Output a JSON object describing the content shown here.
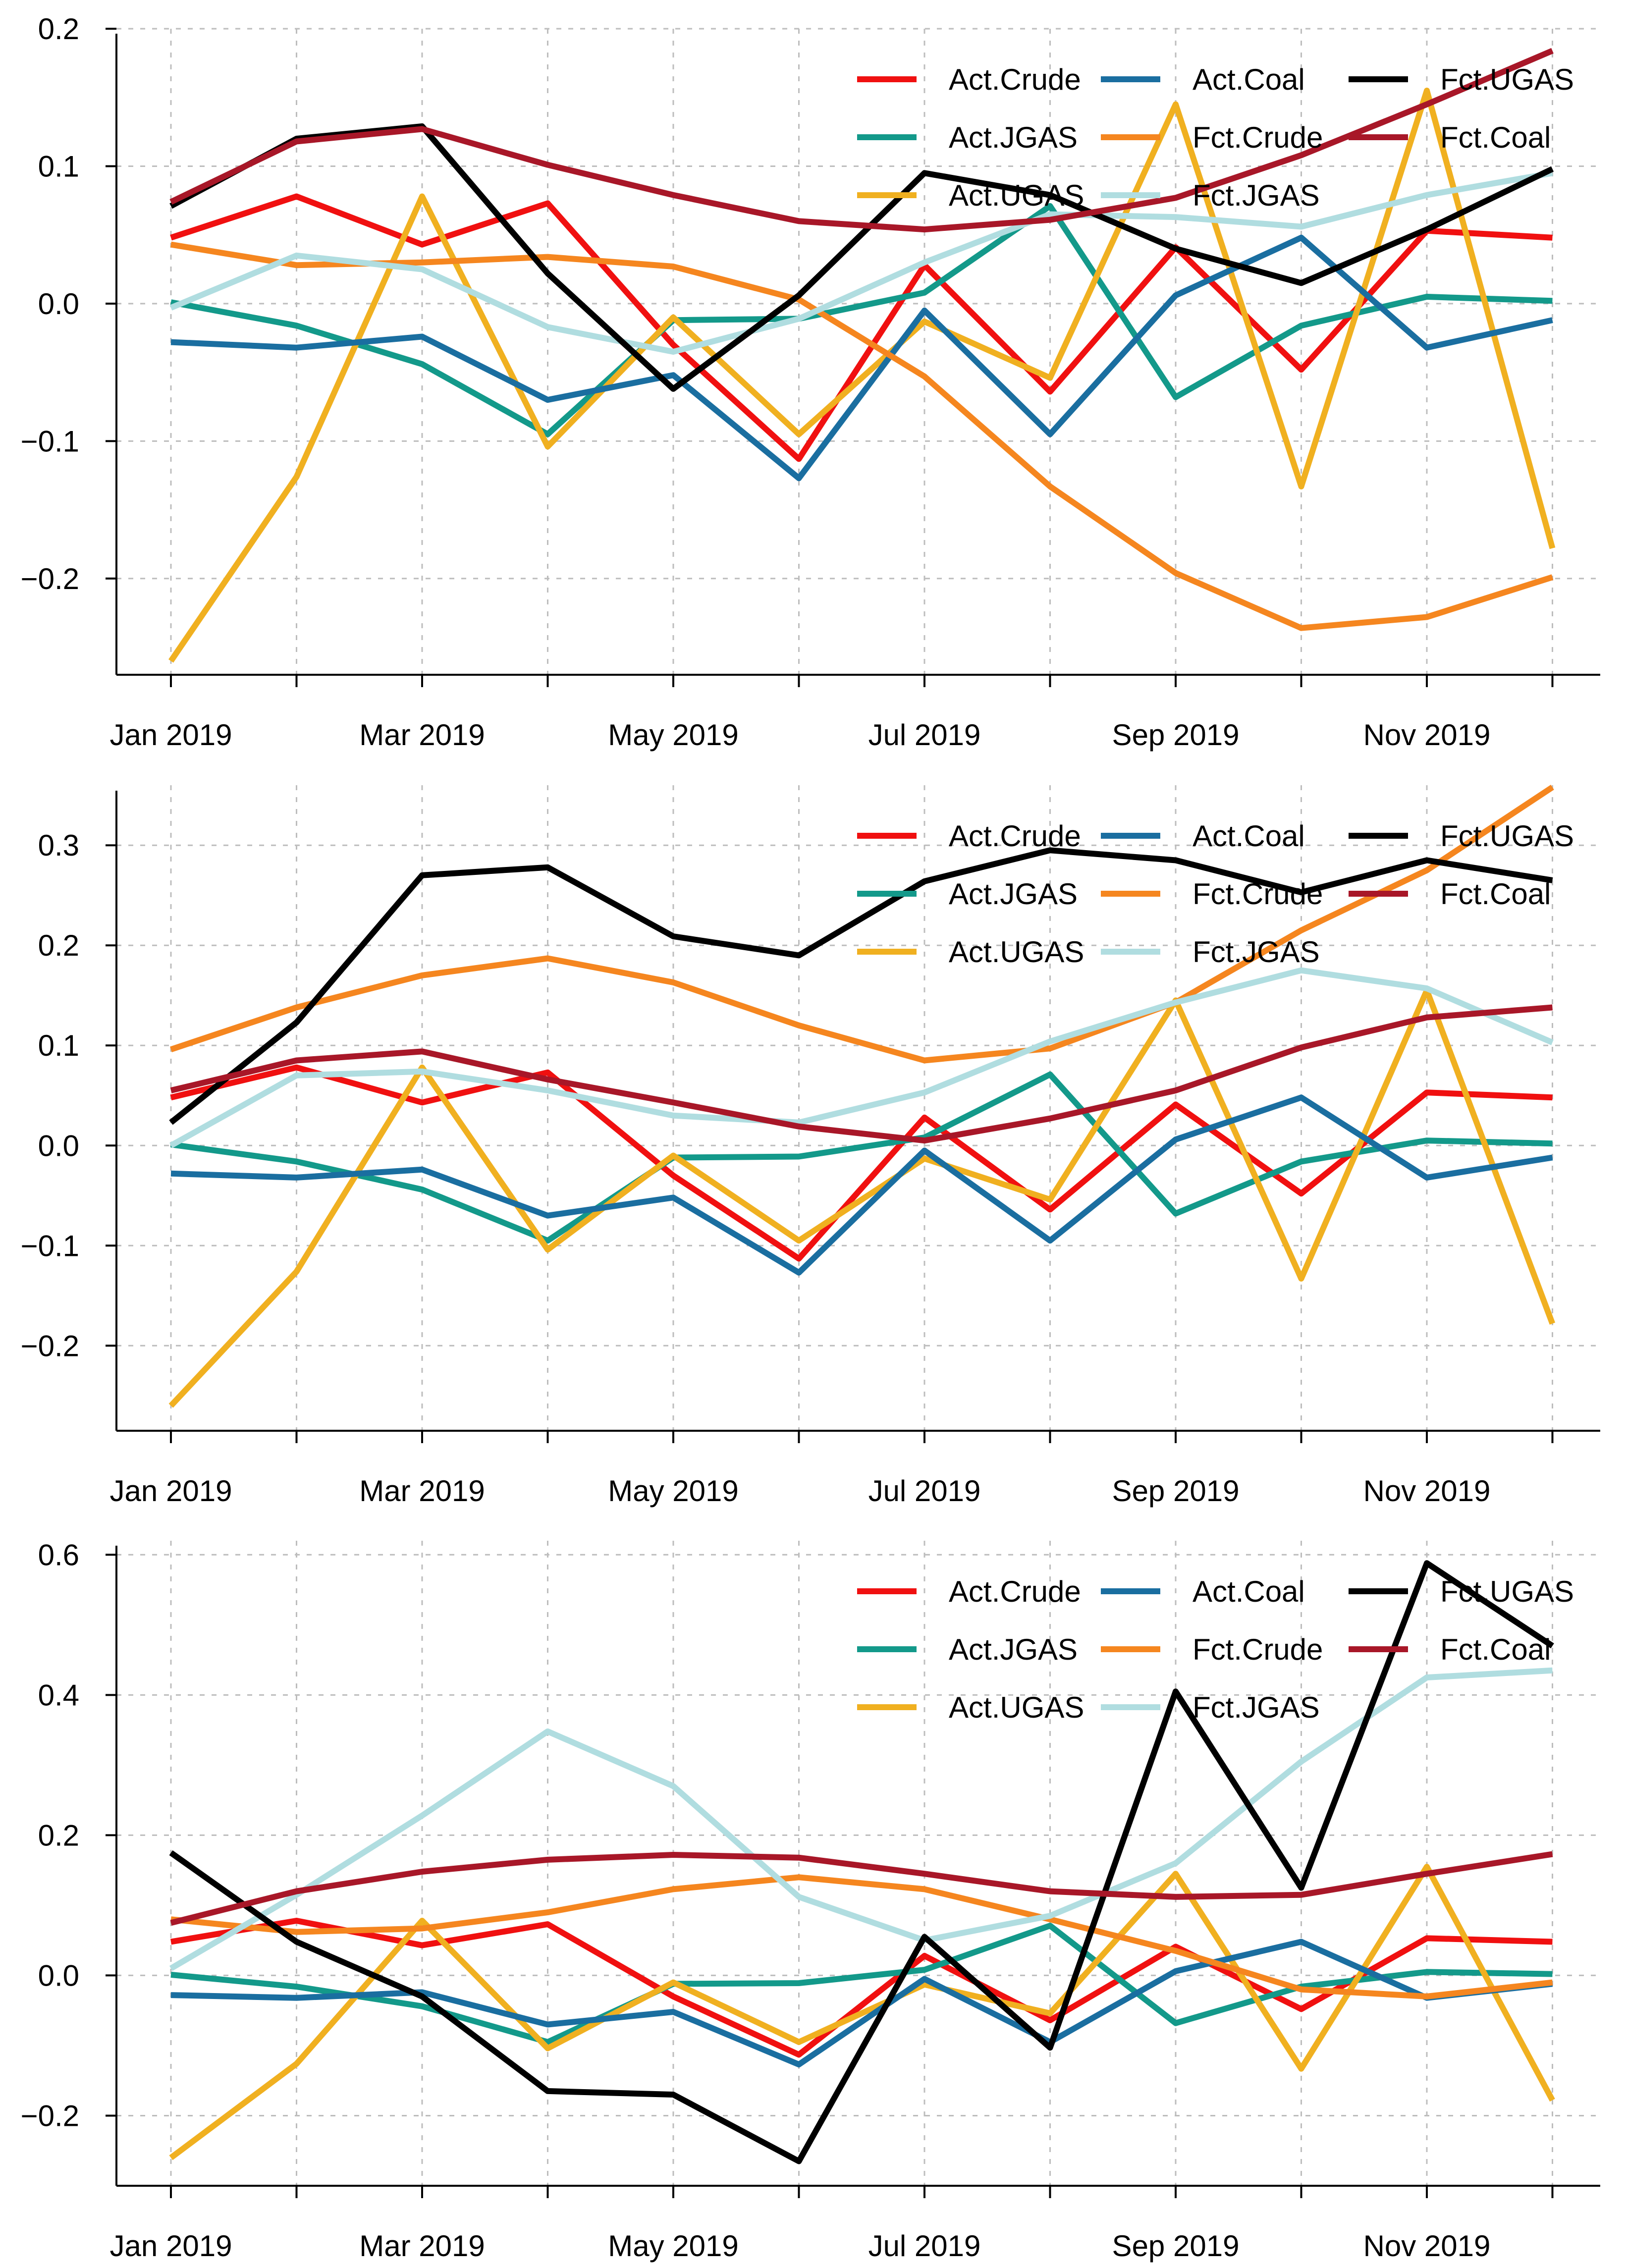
{
  "chart_data": [
    {
      "type": "line",
      "title": "",
      "xlabel": "",
      "ylabel": "",
      "ylim": [
        -0.27,
        0.2
      ],
      "yticks": [
        -0.2,
        -0.1,
        0.0,
        0.1,
        0.2
      ],
      "ytick_labels": [
        "−0.2",
        "−0.1",
        "0.0",
        "0.1",
        "0.2"
      ],
      "x": [
        "Jan 2019",
        "Feb 2019",
        "Mar 2019",
        "Apr 2019",
        "May 2019",
        "Jun 2019",
        "Jul 2019",
        "Aug 2019",
        "Sep 2019",
        "Oct 2019",
        "Nov 2019",
        "Dec 2019"
      ],
      "xtick_labels": [
        "Jan 2019",
        "Mar 2019",
        "May 2019",
        "Jul 2019",
        "Sep 2019",
        "Nov 2019"
      ],
      "grid": true,
      "legend_position": "top-right",
      "series": [
        {
          "name": "Act.Crude",
          "color": "#f01010",
          "values": [
            0.048,
            0.078,
            0.043,
            0.073,
            -0.03,
            -0.113,
            0.028,
            -0.064,
            0.041,
            -0.048,
            0.053,
            0.048
          ]
        },
        {
          "name": "Act.JGAS",
          "color": "#13998a",
          "values": [
            0.001,
            -0.016,
            -0.044,
            -0.095,
            -0.012,
            -0.011,
            0.008,
            0.071,
            -0.068,
            -0.016,
            0.005,
            0.002
          ]
        },
        {
          "name": "Act.UGAS",
          "color": "#f0b020",
          "values": [
            -0.26,
            -0.126,
            0.078,
            -0.104,
            -0.01,
            -0.095,
            -0.013,
            -0.054,
            0.145,
            -0.133,
            0.155,
            -0.178
          ]
        },
        {
          "name": "Act.Coal",
          "color": "#1a6ea0",
          "values": [
            -0.028,
            -0.032,
            -0.024,
            -0.07,
            -0.052,
            -0.127,
            -0.005,
            -0.095,
            0.006,
            0.048,
            -0.032,
            -0.012
          ]
        },
        {
          "name": "Fct.Crude",
          "color": "#f5861f",
          "values": [
            0.043,
            0.028,
            0.03,
            0.034,
            0.027,
            0.003,
            -0.053,
            -0.133,
            -0.196,
            -0.236,
            -0.228,
            -0.199
          ]
        },
        {
          "name": "Fct.JGAS",
          "color": "#b0dde0",
          "values": [
            -0.003,
            0.035,
            0.025,
            -0.017,
            -0.035,
            -0.011,
            0.03,
            0.065,
            0.063,
            0.056,
            0.079,
            0.095
          ]
        },
        {
          "name": "Fct.UGAS",
          "color": "#000000",
          "values": [
            0.071,
            0.12,
            0.129,
            0.022,
            -0.062,
            0.006,
            0.095,
            0.079,
            0.04,
            0.015,
            0.054,
            0.098
          ]
        },
        {
          "name": "Fct.Coal",
          "color": "#a81728",
          "values": [
            0.074,
            0.118,
            0.127,
            0.101,
            0.079,
            0.06,
            0.054,
            0.061,
            0.077,
            0.108,
            0.145,
            0.184
          ]
        }
      ]
    },
    {
      "type": "line",
      "title": "",
      "xlabel": "",
      "ylabel": "",
      "ylim": [
        -0.285,
        0.36
      ],
      "yticks": [
        -0.2,
        -0.1,
        0.0,
        0.1,
        0.2,
        0.3
      ],
      "ytick_labels": [
        "−0.2",
        "−0.1",
        "0.0",
        "0.1",
        "0.2",
        "0.3"
      ],
      "x": [
        "Jan 2019",
        "Feb 2019",
        "Mar 2019",
        "Apr 2019",
        "May 2019",
        "Jun 2019",
        "Jul 2019",
        "Aug 2019",
        "Sep 2019",
        "Oct 2019",
        "Nov 2019",
        "Dec 2019"
      ],
      "xtick_labels": [
        "Jan 2019",
        "Mar 2019",
        "May 2019",
        "Jul 2019",
        "Sep 2019",
        "Nov 2019"
      ],
      "grid": true,
      "legend_position": "top-right",
      "series": [
        {
          "name": "Act.Crude",
          "color": "#f01010",
          "values": [
            0.048,
            0.078,
            0.043,
            0.073,
            -0.03,
            -0.113,
            0.028,
            -0.064,
            0.041,
            -0.048,
            0.053,
            0.048
          ]
        },
        {
          "name": "Act.JGAS",
          "color": "#13998a",
          "values": [
            0.001,
            -0.016,
            -0.044,
            -0.095,
            -0.012,
            -0.011,
            0.008,
            0.071,
            -0.068,
            -0.016,
            0.005,
            0.002
          ]
        },
        {
          "name": "Act.UGAS",
          "color": "#f0b020",
          "values": [
            -0.26,
            -0.126,
            0.078,
            -0.104,
            -0.01,
            -0.095,
            -0.013,
            -0.054,
            0.145,
            -0.133,
            0.155,
            -0.178
          ]
        },
        {
          "name": "Act.Coal",
          "color": "#1a6ea0",
          "values": [
            -0.028,
            -0.032,
            -0.024,
            -0.07,
            -0.052,
            -0.127,
            -0.005,
            -0.095,
            0.006,
            0.048,
            -0.032,
            -0.012
          ]
        },
        {
          "name": "Fct.Crude",
          "color": "#f5861f",
          "values": [
            0.096,
            0.138,
            0.17,
            0.187,
            0.163,
            0.12,
            0.085,
            0.097,
            0.143,
            0.215,
            0.275,
            0.358
          ]
        },
        {
          "name": "Fct.JGAS",
          "color": "#b0dde0",
          "values": [
            0.0,
            0.07,
            0.074,
            0.055,
            0.03,
            0.023,
            0.053,
            0.104,
            0.143,
            0.175,
            0.157,
            0.103
          ]
        },
        {
          "name": "Fct.UGAS",
          "color": "#000000",
          "values": [
            0.023,
            0.123,
            0.27,
            0.278,
            0.209,
            0.19,
            0.264,
            0.295,
            0.285,
            0.253,
            0.285,
            0.265
          ]
        },
        {
          "name": "Fct.Coal",
          "color": "#a81728",
          "values": [
            0.055,
            0.085,
            0.094,
            0.066,
            0.043,
            0.019,
            0.005,
            0.027,
            0.055,
            0.098,
            0.128,
            0.138
          ]
        }
      ]
    },
    {
      "type": "line",
      "title": "",
      "xlabel": "",
      "ylabel": "",
      "ylim": [
        -0.3,
        0.62
      ],
      "yticks": [
        -0.2,
        0.0,
        0.2,
        0.4,
        0.6
      ],
      "ytick_labels": [
        "−0.2",
        "0.0",
        "0.2",
        "0.4",
        "0.6"
      ],
      "x": [
        "Jan 2019",
        "Feb 2019",
        "Mar 2019",
        "Apr 2019",
        "May 2019",
        "Jun 2019",
        "Jul 2019",
        "Aug 2019",
        "Sep 2019",
        "Oct 2019",
        "Nov 2019",
        "Dec 2019"
      ],
      "xtick_labels": [
        "Jan 2019",
        "Mar 2019",
        "May 2019",
        "Jul 2019",
        "Sep 2019",
        "Nov 2019"
      ],
      "grid": true,
      "legend_position": "top-right",
      "series": [
        {
          "name": "Act.Crude",
          "color": "#f01010",
          "values": [
            0.048,
            0.078,
            0.043,
            0.073,
            -0.03,
            -0.113,
            0.028,
            -0.064,
            0.041,
            -0.048,
            0.053,
            0.048
          ]
        },
        {
          "name": "Act.JGAS",
          "color": "#13998a",
          "values": [
            0.001,
            -0.016,
            -0.044,
            -0.095,
            -0.012,
            -0.011,
            0.008,
            0.071,
            -0.068,
            -0.016,
            0.005,
            0.002
          ]
        },
        {
          "name": "Act.UGAS",
          "color": "#f0b020",
          "values": [
            -0.26,
            -0.126,
            0.078,
            -0.104,
            -0.01,
            -0.095,
            -0.013,
            -0.054,
            0.145,
            -0.133,
            0.155,
            -0.178
          ]
        },
        {
          "name": "Act.Coal",
          "color": "#1a6ea0",
          "values": [
            -0.028,
            -0.032,
            -0.024,
            -0.07,
            -0.052,
            -0.127,
            -0.005,
            -0.095,
            0.006,
            0.048,
            -0.032,
            -0.012
          ]
        },
        {
          "name": "Fct.Crude",
          "color": "#f5861f",
          "values": [
            0.08,
            0.062,
            0.067,
            0.09,
            0.123,
            0.14,
            0.123,
            0.08,
            0.035,
            -0.02,
            -0.03,
            -0.01
          ]
        },
        {
          "name": "Fct.JGAS",
          "color": "#b0dde0",
          "values": [
            0.01,
            0.115,
            0.228,
            0.348,
            0.27,
            0.112,
            0.05,
            0.085,
            0.16,
            0.305,
            0.425,
            0.435
          ]
        },
        {
          "name": "Fct.UGAS",
          "color": "#000000",
          "values": [
            0.175,
            0.048,
            -0.03,
            -0.165,
            -0.17,
            -0.265,
            0.055,
            -0.103,
            0.405,
            0.125,
            0.588,
            0.47
          ]
        },
        {
          "name": "Fct.Coal",
          "color": "#a81728",
          "values": [
            0.075,
            0.12,
            0.148,
            0.165,
            0.172,
            0.168,
            0.145,
            0.12,
            0.112,
            0.115,
            0.145,
            0.173
          ]
        }
      ]
    }
  ]
}
